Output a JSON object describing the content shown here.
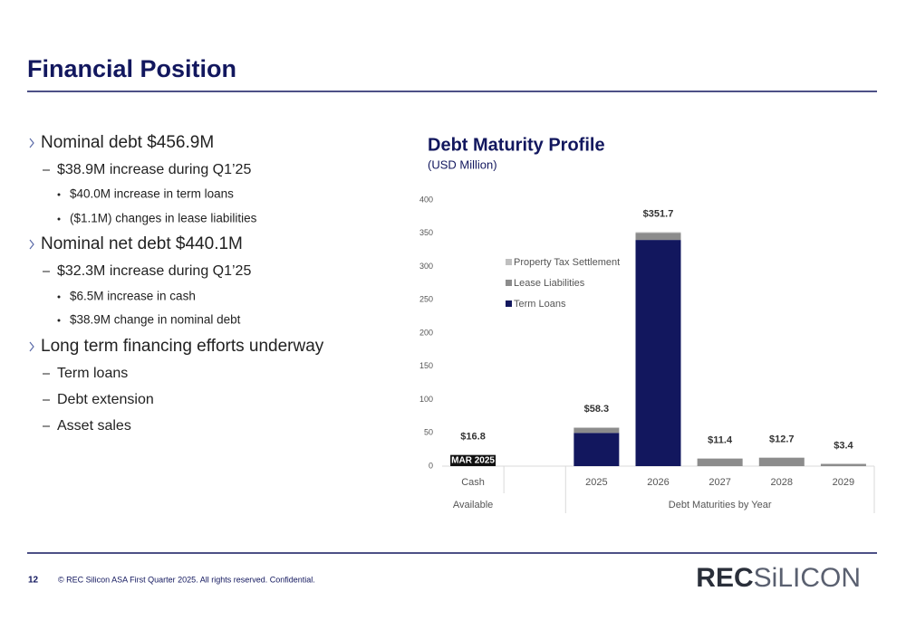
{
  "title": "Financial Position",
  "bullets": [
    {
      "level": 1,
      "text": "Nominal debt $456.9M"
    },
    {
      "level": 2,
      "text": "$38.9M increase during Q1’25"
    },
    {
      "level": 3,
      "text": "$40.0M increase in term loans"
    },
    {
      "level": 3,
      "text": "($1.1M) changes in lease liabilities"
    },
    {
      "level": 1,
      "text": "Nominal net debt $440.1M"
    },
    {
      "level": 2,
      "text": "$32.3M increase during Q1’25"
    },
    {
      "level": 3,
      "text": "$6.5M increase in cash"
    },
    {
      "level": 3,
      "text": "$38.9M change in nominal debt"
    },
    {
      "level": 1,
      "text": "Long term financing efforts underway"
    },
    {
      "level": 2,
      "text": "Term loans"
    },
    {
      "level": 2,
      "text": "Debt extension"
    },
    {
      "level": 2,
      "text": "Asset sales"
    }
  ],
  "footer": {
    "page": "12",
    "copyright": "© REC Silicon ASA First Quarter 2025. All rights reserved. Confidential.",
    "logo": [
      "REC",
      "SiLICON"
    ]
  },
  "chart_data": {
    "type": "stacked-bar",
    "title": "Debt Maturity Profile",
    "subtitle": "(USD Million)",
    "categories": [
      "Cash",
      null,
      "2025",
      "2026",
      "2027",
      "2028",
      "2029"
    ],
    "groups": [
      {
        "label": "Available",
        "span": 2
      },
      {
        "label": "Debt Maturities by Year",
        "span": 5
      }
    ],
    "cash": {
      "value": 16.8,
      "label": "MAR 2025",
      "color": "#111111"
    },
    "series": [
      {
        "name": "Term Loans",
        "color": "#12175e",
        "values": [
          null,
          null,
          50,
          340,
          0,
          0,
          0
        ]
      },
      {
        "name": "Lease Liabilities",
        "color": "#8c8c8c",
        "values": [
          null,
          null,
          7.5,
          10.7,
          11.4,
          12.7,
          3.4
        ]
      },
      {
        "name": "Property Tax Settlement",
        "color": "#bfbfbf",
        "values": [
          null,
          null,
          0.8,
          1,
          0,
          0,
          0
        ]
      }
    ],
    "totals": {
      "values": [
        16.8,
        null,
        58.3,
        351.7,
        11.4,
        12.7,
        3.4
      ],
      "value_labels": [
        "$16.8",
        null,
        "$58.3",
        "$351.7",
        "$11.4",
        "$12.7",
        "$3.4"
      ]
    },
    "ylim": [
      0,
      400
    ],
    "yticks": [
      0,
      50,
      100,
      150,
      200,
      250,
      300,
      350,
      400
    ],
    "grid": false
  }
}
